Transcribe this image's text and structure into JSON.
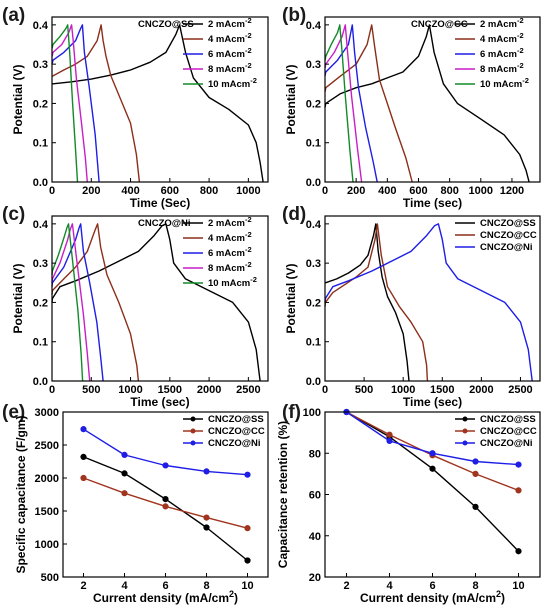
{
  "chart_data": [
    {
      "panel": "(a)",
      "type": "line",
      "title": "CNCZO@SS",
      "xlabel": "Time (Sec)",
      "ylabel": "Potential (V)",
      "xlim": [
        0,
        1100
      ],
      "ylim": [
        0,
        0.42
      ],
      "xticks": [
        0,
        200,
        400,
        600,
        800,
        1000
      ],
      "yticks": [
        0.0,
        0.1,
        0.2,
        0.3,
        0.4
      ],
      "xtick_labels": [
        "0",
        "200",
        "400",
        "600",
        "800",
        "1000"
      ],
      "ytick_labels": [
        "0.0",
        "0.1",
        "0.2",
        "0.3",
        "0.4"
      ],
      "legend_position": "top-right",
      "series": [
        {
          "name": "2 mAcm",
          "sup": "-2",
          "color": "#000000",
          "x": [
            0,
            5,
            100,
            200,
            300,
            400,
            500,
            580,
            630,
            650,
            680,
            720,
            800,
            900,
            1000,
            1040,
            1060,
            1075
          ],
          "y": [
            0.25,
            0.25,
            0.255,
            0.262,
            0.272,
            0.285,
            0.305,
            0.33,
            0.375,
            0.4,
            0.33,
            0.265,
            0.215,
            0.185,
            0.145,
            0.1,
            0.05,
            0.0
          ]
        },
        {
          "name": "4 mAcm",
          "sup": "-2",
          "color": "#8B2F1A",
          "x": [
            0,
            5,
            60,
            120,
            180,
            230,
            250,
            260,
            275,
            300,
            350,
            400,
            430,
            445
          ],
          "y": [
            0.27,
            0.27,
            0.285,
            0.3,
            0.32,
            0.36,
            0.4,
            0.36,
            0.32,
            0.27,
            0.21,
            0.15,
            0.07,
            0.0
          ]
        },
        {
          "name": "6 mAcm",
          "sup": "-2",
          "color": "#1E1EE6",
          "x": [
            0,
            5,
            60,
            120,
            145,
            155,
            165,
            190,
            220,
            240
          ],
          "y": [
            0.3,
            0.31,
            0.33,
            0.36,
            0.39,
            0.4,
            0.33,
            0.24,
            0.12,
            0.0
          ]
        },
        {
          "name": "8 mAcm",
          "sup": "-2",
          "color": "#C71FC7",
          "x": [
            0,
            5,
            50,
            85,
            100,
            108,
            125,
            150,
            170,
            180
          ],
          "y": [
            0.32,
            0.33,
            0.35,
            0.38,
            0.4,
            0.36,
            0.26,
            0.15,
            0.06,
            0.0
          ]
        },
        {
          "name": "10 mAcm",
          "sup": "-2",
          "color": "#138A2A",
          "x": [
            0,
            5,
            40,
            70,
            80,
            90,
            105,
            120,
            130
          ],
          "y": [
            0.34,
            0.35,
            0.37,
            0.39,
            0.4,
            0.33,
            0.2,
            0.08,
            0.0
          ]
        }
      ]
    },
    {
      "panel": "(b)",
      "type": "line",
      "title": "CNCZO@CC",
      "xlabel": "Time (sec)",
      "ylabel": "Potential (V)",
      "xlim": [
        0,
        1380
      ],
      "ylim": [
        0,
        0.42
      ],
      "xticks": [
        0,
        200,
        400,
        600,
        800,
        1000,
        1200
      ],
      "yticks": [
        0.0,
        0.1,
        0.2,
        0.3,
        0.4
      ],
      "xtick_labels": [
        "0",
        "200",
        "400",
        "600",
        "800",
        "1000",
        "1200"
      ],
      "ytick_labels": [
        "0.0",
        "0.1",
        "0.2",
        "0.3",
        "0.4"
      ],
      "legend_position": "top-right",
      "series": [
        {
          "name": "2 mAcm",
          "sup": "-2",
          "color": "#000000",
          "x": [
            0,
            5,
            100,
            200,
            300,
            400,
            500,
            600,
            650,
            670,
            700,
            760,
            850,
            1000,
            1150,
            1250,
            1290,
            1310
          ],
          "y": [
            0.19,
            0.2,
            0.225,
            0.24,
            0.25,
            0.265,
            0.28,
            0.32,
            0.37,
            0.4,
            0.33,
            0.25,
            0.2,
            0.16,
            0.12,
            0.07,
            0.03,
            0.0
          ]
        },
        {
          "name": "4 mAcm",
          "sup": "-2",
          "color": "#8B2F1A",
          "x": [
            0,
            5,
            100,
            200,
            270,
            300,
            320,
            350,
            400,
            450,
            520,
            560
          ],
          "y": [
            0.23,
            0.24,
            0.27,
            0.3,
            0.35,
            0.4,
            0.34,
            0.26,
            0.2,
            0.14,
            0.06,
            0.0
          ]
        },
        {
          "name": "6 mAcm",
          "sup": "-2",
          "color": "#1E1EE6",
          "x": [
            0,
            5,
            80,
            150,
            175,
            190,
            215,
            260,
            310,
            335
          ],
          "y": [
            0.27,
            0.28,
            0.31,
            0.35,
            0.4,
            0.33,
            0.24,
            0.14,
            0.05,
            0.0
          ]
        },
        {
          "name": "8 mAcm",
          "sup": "-2",
          "color": "#C71FC7",
          "x": [
            0,
            5,
            60,
            110,
            130,
            145,
            170,
            210,
            235
          ],
          "y": [
            0.29,
            0.3,
            0.33,
            0.37,
            0.4,
            0.33,
            0.22,
            0.08,
            0.0
          ]
        },
        {
          "name": "10 mAcm",
          "sup": "-2",
          "color": "#138A2A",
          "x": [
            0,
            5,
            40,
            80,
            95,
            110,
            130,
            160,
            180
          ],
          "y": [
            0.31,
            0.32,
            0.35,
            0.38,
            0.4,
            0.33,
            0.22,
            0.08,
            0.0
          ]
        }
      ]
    },
    {
      "panel": "(c)",
      "type": "line",
      "title": "CNCZO@Ni",
      "xlabel": "Time (sec)",
      "ylabel": "Potential (V)",
      "xlim": [
        0,
        2750
      ],
      "ylim": [
        0,
        0.42
      ],
      "xticks": [
        0,
        500,
        1000,
        1500,
        2000,
        2500
      ],
      "yticks": [
        0.0,
        0.1,
        0.2,
        0.3,
        0.4
      ],
      "xtick_labels": [
        "0",
        "500",
        "1000",
        "1500",
        "2000",
        "2500"
      ],
      "ytick_labels": [
        "0.0",
        "0.1",
        "0.2",
        "0.3",
        "0.4"
      ],
      "legend_position": "top-right",
      "series": [
        {
          "name": "2 mAcm",
          "sup": "-2",
          "color": "#000000",
          "x": [
            0,
            5,
            100,
            300,
            600,
            900,
            1100,
            1300,
            1400,
            1450,
            1500,
            1550,
            1700,
            2000,
            2300,
            2500,
            2600,
            2650
          ],
          "y": [
            0.2,
            0.21,
            0.24,
            0.255,
            0.28,
            0.31,
            0.33,
            0.37,
            0.395,
            0.4,
            0.36,
            0.3,
            0.26,
            0.23,
            0.2,
            0.15,
            0.08,
            0.0
          ]
        },
        {
          "name": "4 mAcm",
          "sup": "-2",
          "color": "#8B2F1A",
          "x": [
            0,
            5,
            150,
            300,
            450,
            550,
            580,
            620,
            700,
            850,
            1000,
            1080,
            1100
          ],
          "y": [
            0.22,
            0.23,
            0.26,
            0.29,
            0.33,
            0.385,
            0.4,
            0.34,
            0.27,
            0.2,
            0.12,
            0.04,
            0.0
          ]
        },
        {
          "name": "6 mAcm",
          "sup": "-2",
          "color": "#1E1EE6",
          "x": [
            0,
            5,
            150,
            300,
            345,
            365,
            400,
            480,
            570,
            620,
            650
          ],
          "y": [
            0.24,
            0.25,
            0.29,
            0.36,
            0.39,
            0.4,
            0.33,
            0.25,
            0.15,
            0.06,
            0.0
          ]
        },
        {
          "name": "8 mAcm",
          "sup": "-2",
          "color": "#C71FC7",
          "x": [
            0,
            5,
            100,
            200,
            230,
            260,
            320,
            400,
            450,
            480
          ],
          "y": [
            0.25,
            0.26,
            0.3,
            0.36,
            0.385,
            0.4,
            0.3,
            0.17,
            0.07,
            0.0
          ]
        },
        {
          "name": "10 mAcm",
          "sup": "-2",
          "color": "#138A2A",
          "x": [
            0,
            5,
            80,
            160,
            190,
            210,
            260,
            330,
            370,
            390
          ],
          "y": [
            0.27,
            0.28,
            0.32,
            0.37,
            0.39,
            0.4,
            0.31,
            0.18,
            0.07,
            0.0
          ]
        }
      ]
    },
    {
      "panel": "(d)",
      "type": "line",
      "title": "",
      "xlabel": "Time (sec)",
      "ylabel": "Potential (V)",
      "xlim": [
        0,
        2750
      ],
      "ylim": [
        0,
        0.42
      ],
      "xticks": [
        0,
        500,
        1000,
        1500,
        2000,
        2500
      ],
      "yticks": [
        0.0,
        0.1,
        0.2,
        0.3,
        0.4
      ],
      "xtick_labels": [
        "0",
        "500",
        "1000",
        "1500",
        "2000",
        "2500"
      ],
      "ytick_labels": [
        "0.0",
        "0.1",
        "0.2",
        "0.3",
        "0.4"
      ],
      "legend_position": "top-right",
      "series": [
        {
          "name": "CNCZO@SS",
          "sup": "",
          "color": "#000000",
          "x": [
            0,
            5,
            150,
            300,
            450,
            550,
            620,
            650,
            680,
            730,
            800,
            900,
            1000,
            1050,
            1075
          ],
          "y": [
            0.25,
            0.25,
            0.26,
            0.275,
            0.295,
            0.32,
            0.37,
            0.4,
            0.33,
            0.265,
            0.215,
            0.175,
            0.12,
            0.05,
            0.0
          ]
        },
        {
          "name": "CNCZO@CC",
          "sup": "",
          "color": "#8B2F1A",
          "x": [
            0,
            5,
            100,
            250,
            400,
            550,
            640,
            670,
            720,
            800,
            950,
            1100,
            1250,
            1300,
            1310
          ],
          "y": [
            0.19,
            0.2,
            0.225,
            0.245,
            0.265,
            0.29,
            0.36,
            0.4,
            0.32,
            0.24,
            0.19,
            0.15,
            0.1,
            0.04,
            0.0
          ]
        },
        {
          "name": "CNCZO@Ni",
          "sup": "",
          "color": "#1E1EE6",
          "x": [
            0,
            5,
            100,
            300,
            600,
            900,
            1100,
            1300,
            1400,
            1450,
            1500,
            1550,
            1700,
            2000,
            2300,
            2500,
            2600,
            2650
          ],
          "y": [
            0.2,
            0.21,
            0.24,
            0.255,
            0.28,
            0.31,
            0.33,
            0.37,
            0.395,
            0.4,
            0.36,
            0.3,
            0.26,
            0.23,
            0.2,
            0.15,
            0.08,
            0.0
          ]
        }
      ]
    },
    {
      "panel": "(e)",
      "type": "line",
      "title": "",
      "xlabel": "Current density (mA/cm",
      "xlabel_sup": "2",
      "xlabel_end": ")",
      "ylabel": "Specific capacitance (F/gm)",
      "xlim": [
        1,
        11
      ],
      "ylim": [
        500,
        3000
      ],
      "xticks": [
        2,
        4,
        6,
        8,
        10
      ],
      "yticks": [
        500,
        1000,
        1500,
        2000,
        2500,
        3000
      ],
      "xtick_labels": [
        "2",
        "4",
        "6",
        "8",
        "10"
      ],
      "ytick_labels": [
        "500",
        "1000",
        "1500",
        "2000",
        "2500",
        "3000"
      ],
      "legend_position": "top-right",
      "markers": true,
      "series": [
        {
          "name": "CNCZO@SS",
          "sup": "",
          "color": "#000000",
          "x": [
            2,
            4,
            6,
            8,
            10
          ],
          "y": [
            2320,
            2070,
            1680,
            1250,
            750
          ]
        },
        {
          "name": "CNCZO@CC",
          "sup": "",
          "color": "#A0341E",
          "x": [
            2,
            4,
            6,
            8,
            10
          ],
          "y": [
            2000,
            1770,
            1570,
            1400,
            1240
          ]
        },
        {
          "name": "CNCZO@Ni",
          "sup": "",
          "color": "#1E1EE6",
          "x": [
            2,
            4,
            6,
            8,
            10
          ],
          "y": [
            2740,
            2350,
            2190,
            2100,
            2050
          ]
        }
      ]
    },
    {
      "panel": "(f)",
      "type": "line",
      "title": "",
      "xlabel": "Current density (mA/cm",
      "xlabel_sup": "2",
      "xlabel_end": ")",
      "ylabel": "Capacitance retention (%)",
      "xlim": [
        1,
        11
      ],
      "ylim": [
        20,
        100
      ],
      "xticks": [
        2,
        4,
        6,
        8,
        10
      ],
      "yticks": [
        20,
        40,
        60,
        80,
        100
      ],
      "xtick_labels": [
        "2",
        "4",
        "6",
        "8",
        "10"
      ],
      "ytick_labels": [
        "20",
        "40",
        "60",
        "80",
        "100"
      ],
      "legend_position": "top-right",
      "markers": true,
      "series": [
        {
          "name": "CNCZO@SS",
          "sup": "",
          "color": "#000000",
          "x": [
            2,
            4,
            6,
            8,
            10
          ],
          "y": [
            100,
            88,
            72.5,
            54,
            32.5
          ]
        },
        {
          "name": "CNCZO@CC",
          "sup": "",
          "color": "#A0341E",
          "x": [
            2,
            4,
            6,
            8,
            10
          ],
          "y": [
            100,
            89,
            79,
            70,
            62
          ]
        },
        {
          "name": "CNCZO@Ni",
          "sup": "",
          "color": "#1E1EE6",
          "x": [
            2,
            4,
            6,
            8,
            10
          ],
          "y": [
            100,
            86,
            80,
            76,
            74.5
          ]
        }
      ]
    }
  ]
}
